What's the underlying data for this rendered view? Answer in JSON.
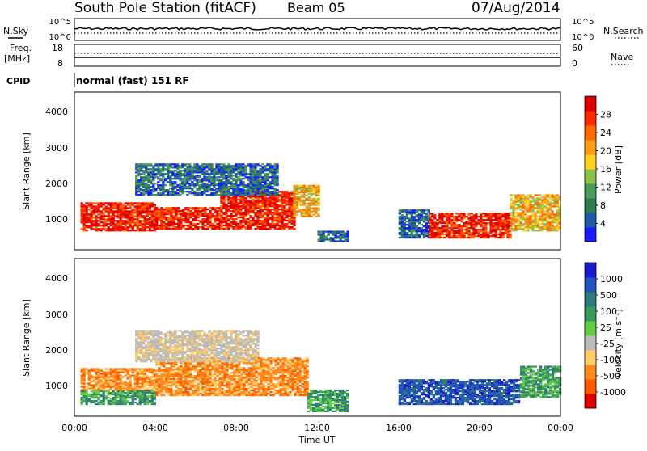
{
  "header": {
    "station_title": "South Pole Station (fitACF)",
    "beam": "Beam 05",
    "date": "07/Aug/2014"
  },
  "noise_panel": {
    "left_label": "N.Sky",
    "right_label": "N.Search",
    "left_ticks": [
      "10^5",
      "10^0"
    ],
    "right_ticks": [
      "10^5",
      "10^0"
    ]
  },
  "freq_panel": {
    "left_label": "Freq.",
    "left_unit": "[MHz]",
    "right_label": "Nave",
    "left_ticks": [
      "18",
      "8"
    ],
    "right_ticks": [
      "60",
      "0"
    ]
  },
  "cpid": {
    "label": "CPID",
    "mode": "normal (fast) 151 RF"
  },
  "colors": {
    "power_scale": [
      "#1a1aff",
      "#1e5aa8",
      "#2e7d52",
      "#4a9a5e",
      "#8dc04a",
      "#ffd21f",
      "#ff9a1a",
      "#ff6a00",
      "#ff2a00",
      "#e00000"
    ],
    "velocity_scale": [
      "#1a1acf",
      "#2255bb",
      "#2f7a7a",
      "#3a9a5a",
      "#66cc44",
      "#bbbbbb",
      "#ffcc66",
      "#ff8c1a",
      "#ff5a00",
      "#e00000"
    ]
  },
  "chart_data": [
    {
      "type": "heatmap",
      "quantity": "Power",
      "xlabel": "Time UT",
      "ylabel": "Slant Range [km]",
      "x_ticks": [
        "00:00",
        "04:00",
        "08:00",
        "12:00",
        "16:00",
        "20:00",
        "00:00"
      ],
      "y_ticks": [
        "1000",
        "2000",
        "3000",
        "4000"
      ],
      "ylim": [
        180,
        4600
      ],
      "xlim_hours": [
        0,
        24
      ],
      "colorbar": {
        "label": "Power [dB]",
        "ticks": [
          "4",
          "8",
          "12",
          "16",
          "20",
          "24",
          "28"
        ],
        "range": [
          0,
          30
        ]
      },
      "regions": [
        {
          "t0": 0.3,
          "t1": 4.0,
          "r0": 700,
          "r1": 1500,
          "level": "strong"
        },
        {
          "t0": 4.0,
          "t1": 7.2,
          "r0": 750,
          "r1": 1350,
          "level": "strong"
        },
        {
          "t0": 7.2,
          "t1": 10.8,
          "r0": 750,
          "r1": 1800,
          "level": "strong"
        },
        {
          "t0": 10.8,
          "t1": 12.0,
          "r0": 1100,
          "r1": 2000,
          "level": "medium"
        },
        {
          "t0": 3.0,
          "t1": 10.0,
          "r0": 1700,
          "r1": 2600,
          "level": "weak"
        },
        {
          "t0": 12.0,
          "t1": 13.5,
          "r0": 400,
          "r1": 700,
          "level": "weak"
        },
        {
          "t0": 16.0,
          "t1": 17.5,
          "r0": 500,
          "r1": 1300,
          "level": "weak"
        },
        {
          "t0": 17.5,
          "t1": 21.5,
          "r0": 500,
          "r1": 1200,
          "level": "strong"
        },
        {
          "t0": 21.5,
          "t1": 24.0,
          "r0": 700,
          "r1": 1700,
          "level": "medium"
        }
      ]
    },
    {
      "type": "heatmap",
      "quantity": "Velocity",
      "xlabel": "Time UT",
      "ylabel": "Slant Range [km]",
      "x_ticks": [
        "00:00",
        "04:00",
        "08:00",
        "12:00",
        "16:00",
        "20:00",
        "00:00"
      ],
      "y_ticks": [
        "1000",
        "2000",
        "3000",
        "4000"
      ],
      "ylim": [
        180,
        4600
      ],
      "xlim_hours": [
        0,
        24
      ],
      "colorbar": {
        "label": "Velocity [m s⁻¹]",
        "ticks": [
          "1000",
          "500",
          "100",
          "25",
          "-25",
          "-100",
          "-500",
          "-1000"
        ],
        "range": [
          -1000,
          1000
        ]
      },
      "regions": [
        {
          "t0": 0.3,
          "t1": 4.0,
          "r0": 900,
          "r1": 1500,
          "level": "away"
        },
        {
          "t0": 0.3,
          "t1": 4.0,
          "r0": 500,
          "r1": 900,
          "level": "toward"
        },
        {
          "t0": 4.0,
          "t1": 11.5,
          "r0": 750,
          "r1": 1800,
          "level": "away"
        },
        {
          "t0": 3.0,
          "t1": 9.0,
          "r0": 1700,
          "r1": 2600,
          "level": "neutral"
        },
        {
          "t0": 11.5,
          "t1": 13.5,
          "r0": 300,
          "r1": 900,
          "level": "toward"
        },
        {
          "t0": 16.0,
          "t1": 22.0,
          "r0": 500,
          "r1": 1200,
          "level": "fast_toward"
        },
        {
          "t0": 22.0,
          "t1": 24.0,
          "r0": 700,
          "r1": 1600,
          "level": "toward"
        }
      ]
    }
  ]
}
